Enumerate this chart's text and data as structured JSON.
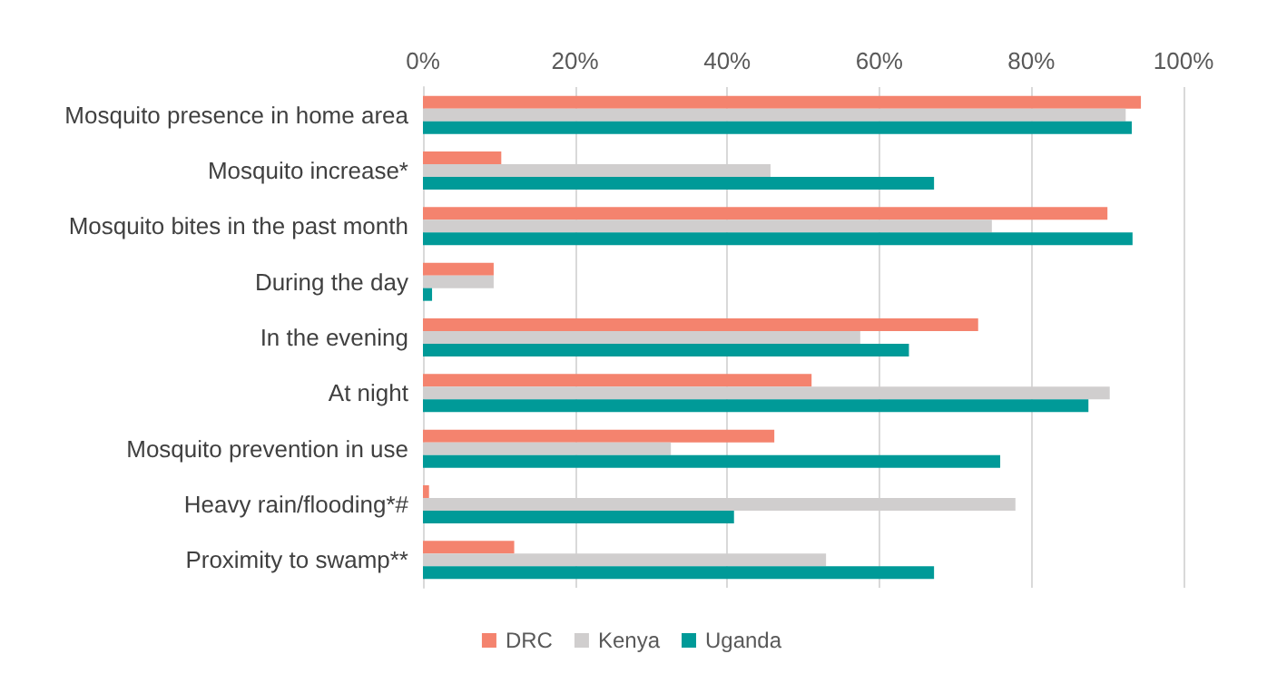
{
  "chart_data": {
    "type": "bar",
    "orientation": "horizontal",
    "categories": [
      "Mosquito presence in home area",
      "Mosquito increase*",
      "Mosquito bites in the past month",
      "During the day",
      "In the evening",
      "At night",
      "Mosquito prevention in use",
      "Heavy rain/flooding*#",
      "Proximity to swamp**"
    ],
    "series": [
      {
        "name": "DRC",
        "color": "#f4836e",
        "values": [
          94.4,
          10.3,
          90,
          9.3,
          73,
          51.1,
          46.2,
          0.8,
          12
        ]
      },
      {
        "name": "Kenya",
        "color": "#d0cece",
        "values": [
          92.4,
          45.7,
          74.8,
          9.3,
          57.5,
          90.3,
          32.6,
          77.9,
          53
        ]
      },
      {
        "name": "Uganda",
        "color": "#009a98",
        "values": [
          93.2,
          67.2,
          93.3,
          1.2,
          63.9,
          87.5,
          75.9,
          40.9,
          67.2
        ]
      }
    ],
    "xlim": [
      0,
      100
    ],
    "xticks": [
      {
        "value": 0,
        "label": "0%"
      },
      {
        "value": 20,
        "label": "20%"
      },
      {
        "value": 40,
        "label": "40%"
      },
      {
        "value": 60,
        "label": "60%"
      },
      {
        "value": 80,
        "label": "80%"
      },
      {
        "value": 100,
        "label": "100%"
      }
    ],
    "grid": "x",
    "legend": "bottom"
  }
}
